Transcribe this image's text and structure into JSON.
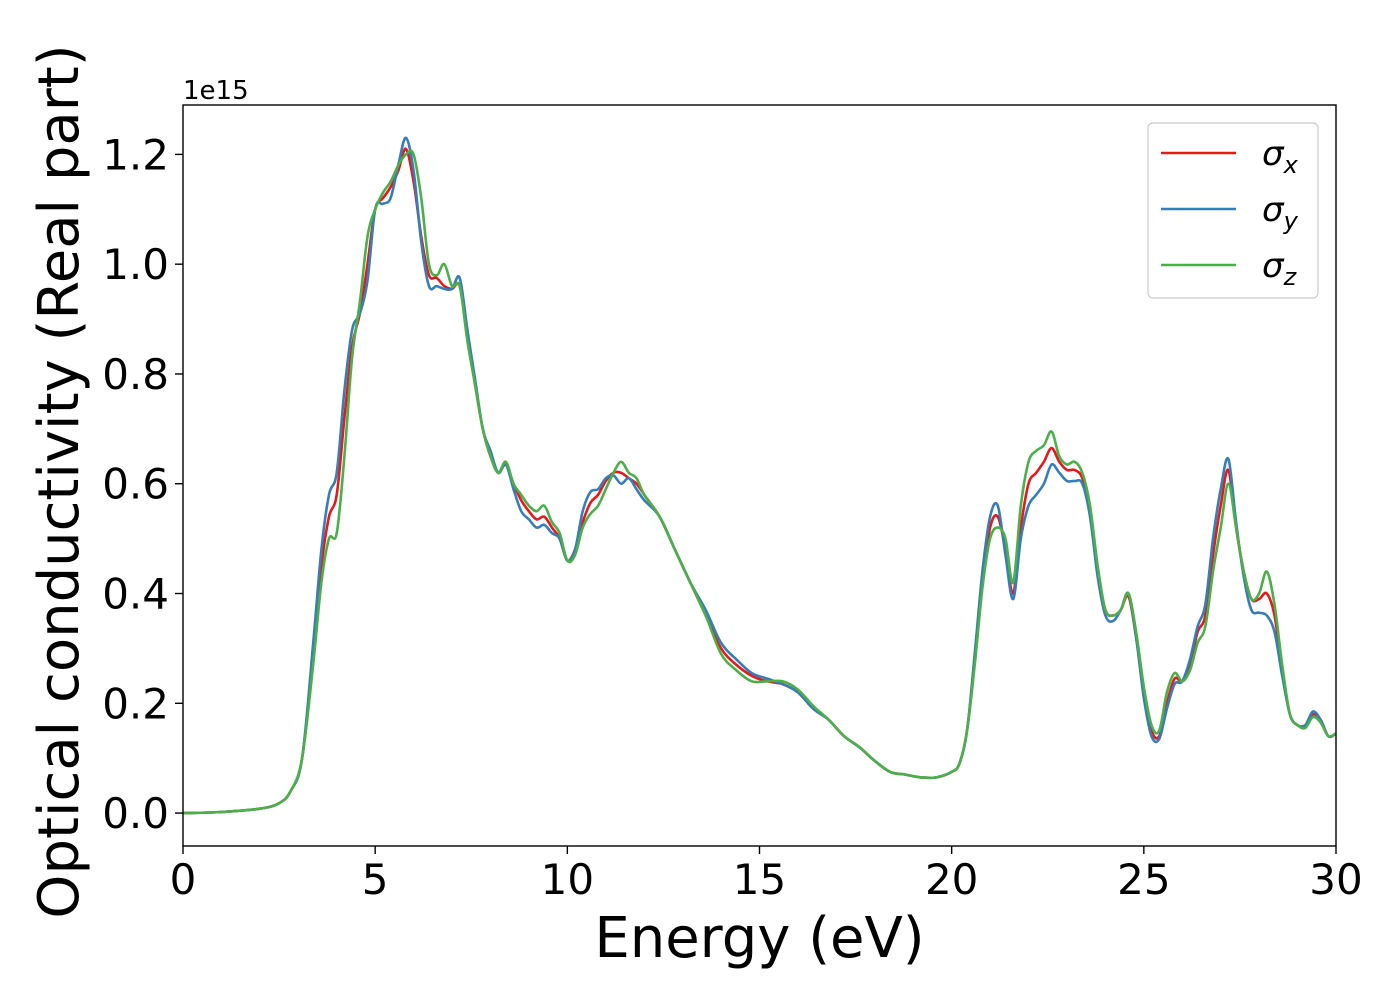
{
  "chart_data": {
    "type": "line",
    "xlabel": "Energy (eV)",
    "ylabel": "Optical conductivity (Real part)",
    "y_offset_label": "1e15",
    "xlim": [
      0,
      30
    ],
    "ylim": [
      -0.06,
      1.29
    ],
    "x_ticks": [
      0,
      5,
      10,
      15,
      20,
      25,
      30
    ],
    "x_tick_labels": [
      "0",
      "5",
      "10",
      "15",
      "20",
      "25",
      "30"
    ],
    "y_ticks": [
      0.0,
      0.2,
      0.4,
      0.6,
      0.8,
      1.0,
      1.2
    ],
    "y_tick_labels": [
      "0.0",
      "0.2",
      "0.4",
      "0.6",
      "0.8",
      "1.0",
      "1.2"
    ],
    "grid": false,
    "legend_position": "top-right",
    "series": [
      {
        "name": "σx",
        "legend_base": "σ",
        "legend_sub": "x",
        "color": "#e41a1c",
        "x": [
          0,
          1,
          2,
          2.5,
          2.8,
          3.1,
          3.4,
          3.6,
          3.8,
          4.0,
          4.2,
          4.4,
          4.6,
          4.8,
          5.0,
          5.2,
          5.4,
          5.6,
          5.8,
          6.0,
          6.2,
          6.4,
          6.6,
          6.8,
          7.0,
          7.2,
          7.4,
          7.6,
          7.8,
          8.0,
          8.2,
          8.4,
          8.6,
          8.8,
          9.0,
          9.2,
          9.4,
          9.6,
          9.8,
          10.0,
          10.2,
          10.4,
          10.6,
          10.8,
          11.0,
          11.2,
          11.4,
          11.6,
          11.8,
          12.0,
          12.4,
          12.8,
          13.2,
          13.6,
          14.0,
          14.4,
          14.8,
          15.2,
          15.6,
          16.0,
          16.4,
          16.8,
          17.2,
          17.6,
          18.0,
          18.4,
          18.8,
          19.2,
          19.6,
          20.0,
          20.2,
          20.4,
          20.6,
          20.8,
          21.0,
          21.2,
          21.4,
          21.6,
          21.8,
          22.0,
          22.2,
          22.4,
          22.6,
          22.8,
          23.0,
          23.2,
          23.4,
          23.6,
          23.8,
          24.0,
          24.2,
          24.4,
          24.6,
          24.8,
          25.0,
          25.2,
          25.4,
          25.6,
          25.8,
          26.0,
          26.2,
          26.4,
          26.6,
          26.8,
          27.0,
          27.2,
          27.4,
          27.6,
          27.8,
          28.0,
          28.2,
          28.4,
          28.6,
          28.8,
          29.0,
          29.2,
          29.4,
          29.6,
          29.8,
          30.0
        ],
        "y": [
          0.0,
          0.002,
          0.008,
          0.018,
          0.04,
          0.1,
          0.3,
          0.45,
          0.54,
          0.58,
          0.72,
          0.85,
          0.91,
          1.0,
          1.1,
          1.12,
          1.14,
          1.17,
          1.21,
          1.15,
          1.05,
          0.98,
          0.975,
          0.96,
          0.955,
          0.96,
          0.87,
          0.78,
          0.7,
          0.65,
          0.62,
          0.635,
          0.6,
          0.57,
          0.55,
          0.535,
          0.54,
          0.52,
          0.5,
          0.46,
          0.48,
          0.53,
          0.565,
          0.58,
          0.605,
          0.62,
          0.62,
          0.61,
          0.6,
          0.58,
          0.54,
          0.48,
          0.42,
          0.36,
          0.3,
          0.27,
          0.25,
          0.24,
          0.235,
          0.22,
          0.19,
          0.17,
          0.14,
          0.12,
          0.095,
          0.075,
          0.07,
          0.065,
          0.065,
          0.075,
          0.09,
          0.15,
          0.28,
          0.42,
          0.52,
          0.54,
          0.48,
          0.4,
          0.52,
          0.6,
          0.62,
          0.64,
          0.665,
          0.64,
          0.625,
          0.625,
          0.61,
          0.55,
          0.44,
          0.37,
          0.36,
          0.37,
          0.395,
          0.32,
          0.22,
          0.15,
          0.14,
          0.2,
          0.245,
          0.24,
          0.27,
          0.33,
          0.36,
          0.47,
          0.56,
          0.625,
          0.52,
          0.44,
          0.39,
          0.39,
          0.4,
          0.36,
          0.26,
          0.18,
          0.16,
          0.16,
          0.18,
          0.17,
          0.14,
          0.145
        ]
      },
      {
        "name": "σy",
        "legend_base": "σ",
        "legend_sub": "y",
        "color": "#377eb8",
        "x": [
          0,
          1,
          2,
          2.5,
          2.8,
          3.1,
          3.4,
          3.6,
          3.8,
          4.0,
          4.2,
          4.4,
          4.6,
          4.8,
          5.0,
          5.2,
          5.4,
          5.6,
          5.8,
          6.0,
          6.2,
          6.4,
          6.6,
          6.8,
          7.0,
          7.2,
          7.4,
          7.6,
          7.8,
          8.0,
          8.2,
          8.4,
          8.6,
          8.8,
          9.0,
          9.2,
          9.4,
          9.6,
          9.8,
          10.0,
          10.2,
          10.4,
          10.6,
          10.8,
          11.0,
          11.2,
          11.4,
          11.6,
          11.8,
          12.0,
          12.4,
          12.8,
          13.2,
          13.6,
          14.0,
          14.4,
          14.8,
          15.2,
          15.6,
          16.0,
          16.4,
          16.8,
          17.2,
          17.6,
          18.0,
          18.4,
          18.8,
          19.2,
          19.6,
          20.0,
          20.2,
          20.4,
          20.6,
          20.8,
          21.0,
          21.2,
          21.4,
          21.6,
          21.8,
          22.0,
          22.2,
          22.4,
          22.6,
          22.8,
          23.0,
          23.2,
          23.4,
          23.6,
          23.8,
          24.0,
          24.2,
          24.4,
          24.6,
          24.8,
          25.0,
          25.2,
          25.4,
          25.6,
          25.8,
          26.0,
          26.2,
          26.4,
          26.6,
          26.8,
          27.0,
          27.2,
          27.4,
          27.6,
          27.8,
          28.0,
          28.2,
          28.4,
          28.6,
          28.8,
          29.0,
          29.2,
          29.4,
          29.6,
          29.8,
          30.0
        ],
        "y": [
          0.0,
          0.002,
          0.008,
          0.018,
          0.04,
          0.1,
          0.32,
          0.48,
          0.58,
          0.62,
          0.77,
          0.88,
          0.91,
          0.97,
          1.1,
          1.11,
          1.12,
          1.18,
          1.23,
          1.17,
          1.04,
          0.96,
          0.96,
          0.955,
          0.955,
          0.975,
          0.88,
          0.79,
          0.7,
          0.66,
          0.62,
          0.635,
          0.59,
          0.55,
          0.535,
          0.52,
          0.525,
          0.51,
          0.5,
          0.46,
          0.48,
          0.55,
          0.585,
          0.59,
          0.61,
          0.615,
          0.6,
          0.61,
          0.59,
          0.57,
          0.54,
          0.48,
          0.42,
          0.37,
          0.31,
          0.28,
          0.255,
          0.245,
          0.235,
          0.22,
          0.19,
          0.17,
          0.14,
          0.12,
          0.095,
          0.075,
          0.07,
          0.065,
          0.065,
          0.075,
          0.09,
          0.15,
          0.29,
          0.44,
          0.54,
          0.56,
          0.47,
          0.39,
          0.5,
          0.56,
          0.58,
          0.6,
          0.635,
          0.62,
          0.605,
          0.605,
          0.6,
          0.54,
          0.43,
          0.36,
          0.35,
          0.37,
          0.4,
          0.32,
          0.21,
          0.14,
          0.135,
          0.19,
          0.235,
          0.24,
          0.28,
          0.34,
          0.38,
          0.5,
          0.59,
          0.645,
          0.53,
          0.43,
          0.37,
          0.365,
          0.36,
          0.33,
          0.25,
          0.18,
          0.16,
          0.16,
          0.185,
          0.17,
          0.14,
          0.145
        ]
      },
      {
        "name": "σz",
        "legend_base": "σ",
        "legend_sub": "z",
        "color": "#4daf4a",
        "x": [
          0,
          1,
          2,
          2.5,
          2.8,
          3.1,
          3.4,
          3.6,
          3.8,
          4.0,
          4.2,
          4.4,
          4.6,
          4.8,
          5.0,
          5.2,
          5.4,
          5.6,
          5.8,
          6.0,
          6.2,
          6.4,
          6.6,
          6.8,
          7.0,
          7.2,
          7.4,
          7.6,
          7.8,
          8.0,
          8.2,
          8.4,
          8.6,
          8.8,
          9.0,
          9.2,
          9.4,
          9.6,
          9.8,
          10.0,
          10.2,
          10.4,
          10.6,
          10.8,
          11.0,
          11.2,
          11.4,
          11.6,
          11.8,
          12.0,
          12.4,
          12.8,
          13.2,
          13.6,
          14.0,
          14.4,
          14.8,
          15.2,
          15.6,
          16.0,
          16.4,
          16.8,
          17.2,
          17.6,
          18.0,
          18.4,
          18.8,
          19.2,
          19.6,
          20.0,
          20.2,
          20.4,
          20.6,
          20.8,
          21.0,
          21.2,
          21.4,
          21.6,
          21.8,
          22.0,
          22.2,
          22.4,
          22.6,
          22.8,
          23.0,
          23.2,
          23.4,
          23.6,
          23.8,
          24.0,
          24.2,
          24.4,
          24.6,
          24.8,
          25.0,
          25.2,
          25.4,
          25.6,
          25.8,
          26.0,
          26.2,
          26.4,
          26.6,
          26.8,
          27.0,
          27.2,
          27.4,
          27.6,
          27.8,
          28.0,
          28.2,
          28.4,
          28.6,
          28.8,
          29.0,
          29.2,
          29.4,
          29.6,
          29.8,
          30.0
        ],
        "y": [
          0.0,
          0.002,
          0.008,
          0.018,
          0.04,
          0.1,
          0.28,
          0.42,
          0.5,
          0.51,
          0.65,
          0.83,
          0.93,
          1.05,
          1.1,
          1.13,
          1.15,
          1.18,
          1.2,
          1.2,
          1.12,
          1.0,
          0.98,
          1.0,
          0.96,
          0.96,
          0.86,
          0.78,
          0.7,
          0.65,
          0.62,
          0.64,
          0.6,
          0.58,
          0.56,
          0.55,
          0.56,
          0.53,
          0.51,
          0.46,
          0.47,
          0.52,
          0.545,
          0.56,
          0.59,
          0.62,
          0.64,
          0.62,
          0.61,
          0.58,
          0.54,
          0.48,
          0.42,
          0.36,
          0.29,
          0.26,
          0.24,
          0.24,
          0.24,
          0.225,
          0.195,
          0.17,
          0.14,
          0.12,
          0.095,
          0.075,
          0.07,
          0.065,
          0.065,
          0.075,
          0.09,
          0.15,
          0.27,
          0.41,
          0.5,
          0.52,
          0.5,
          0.42,
          0.56,
          0.64,
          0.66,
          0.67,
          0.695,
          0.65,
          0.635,
          0.64,
          0.62,
          0.56,
          0.45,
          0.37,
          0.36,
          0.37,
          0.4,
          0.33,
          0.23,
          0.16,
          0.15,
          0.22,
          0.255,
          0.24,
          0.26,
          0.31,
          0.34,
          0.44,
          0.52,
          0.6,
          0.52,
          0.44,
          0.39,
          0.4,
          0.44,
          0.38,
          0.27,
          0.18,
          0.16,
          0.155,
          0.175,
          0.165,
          0.14,
          0.145
        ]
      }
    ]
  }
}
